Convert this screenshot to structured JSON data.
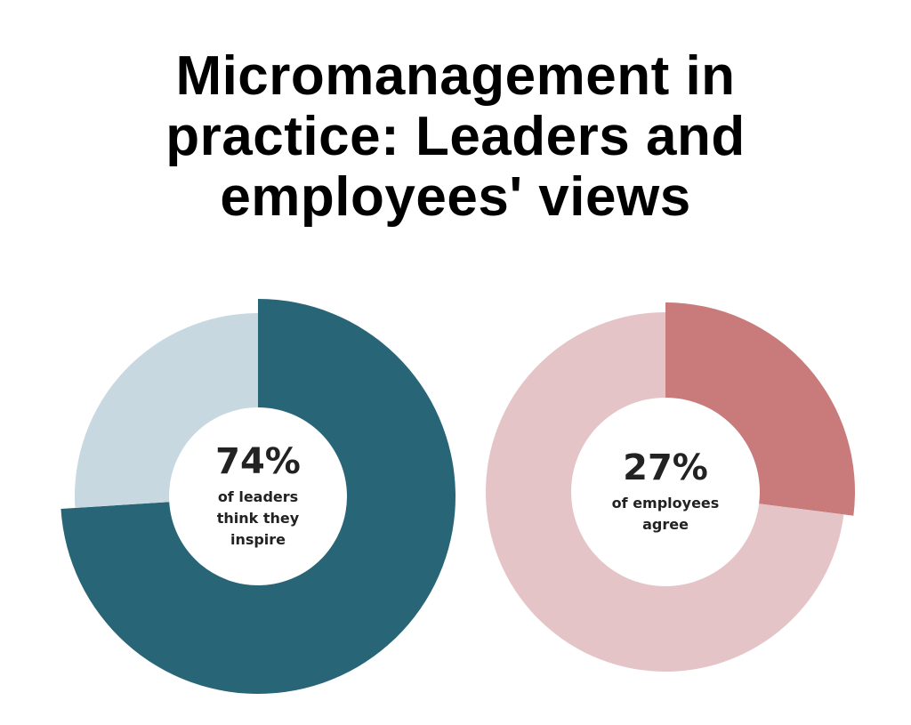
{
  "title": "Micromanagement in practice: Leaders and employees' views",
  "chart_data": [
    {
      "type": "donut",
      "values": [
        74,
        26
      ],
      "colors": [
        "#286577",
        "#c7d8e0"
      ],
      "value_labels": [
        "74%",
        null
      ],
      "center_text": "of leaders think they inspire"
    },
    {
      "type": "donut",
      "values": [
        27,
        73
      ],
      "colors": [
        "#c97a7a",
        "#e5c4c7"
      ],
      "value_labels": [
        "27%",
        null
      ],
      "center_text": "of employees agree"
    }
  ]
}
